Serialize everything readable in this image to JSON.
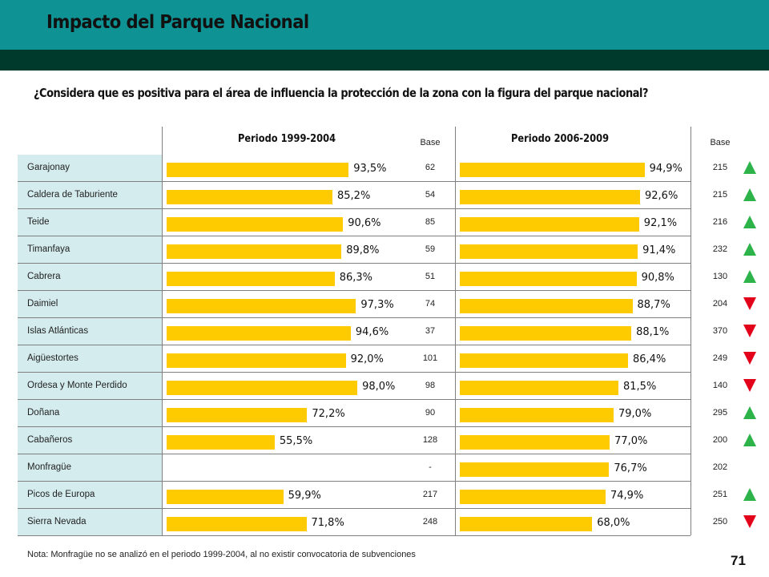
{
  "header": {
    "title": "Impacto del Parque Nacional"
  },
  "question": "¿Considera que es positiva para el área de influencia la protección de la zona con la figura del parque nacional?",
  "columns": {
    "period1": "Periodo 1999-2004",
    "period2": "Periodo 2006-2009",
    "base": "Base"
  },
  "chart_data": {
    "type": "bar",
    "orientation": "horizontal",
    "categories": [
      "Garajonay",
      "Caldera de Taburiente",
      "Teide",
      "Timanfaya",
      "Cabrera",
      "Daimiel",
      "Islas Atlánticas",
      "Aigüestortes",
      "Ordesa y Monte Perdido",
      "Doñana",
      "Cabañeros",
      "Monfragüe",
      "Picos de Europa",
      "Sierra Nevada"
    ],
    "series": [
      {
        "name": "Periodo 1999-2004",
        "values": [
          93.5,
          85.2,
          90.6,
          89.8,
          86.3,
          97.3,
          94.6,
          92.0,
          98.0,
          72.2,
          55.5,
          null,
          59.9,
          71.8
        ],
        "labels": [
          "93,5%",
          "85,2%",
          "90,6%",
          "89,8%",
          "86,3%",
          "97,3%",
          "94,6%",
          "92,0%",
          "98,0%",
          "72,2%",
          "55,5%",
          "",
          "59,9%",
          "71,8%"
        ],
        "base": [
          "62",
          "54",
          "85",
          "59",
          "51",
          "74",
          "37",
          "101",
          "98",
          "90",
          "128",
          "-",
          "217",
          "248"
        ]
      },
      {
        "name": "Periodo 2006-2009",
        "values": [
          94.9,
          92.6,
          92.1,
          91.4,
          90.8,
          88.7,
          88.1,
          86.4,
          81.5,
          79.0,
          77.0,
          76.7,
          74.9,
          68.0
        ],
        "labels": [
          "94,9%",
          "92,6%",
          "92,1%",
          "91,4%",
          "90,8%",
          "88,7%",
          "88,1%",
          "86,4%",
          "81,5%",
          "79,0%",
          "77,0%",
          "76,7%",
          "74,9%",
          "68,0%"
        ],
        "base": [
          "215",
          "215",
          "216",
          "232",
          "130",
          "204",
          "370",
          "249",
          "140",
          "295",
          "200",
          "202",
          "251",
          "250"
        ]
      }
    ],
    "trend": [
      "up",
      "up",
      "up",
      "up",
      "up",
      "down",
      "down",
      "down",
      "down",
      "up",
      "up",
      null,
      "up",
      "down"
    ],
    "colors": {
      "bar": "#fdcb00",
      "up": "#2db34a",
      "down": "#e2001a",
      "label_cell": "#d4ecee"
    }
  },
  "footnote": "Nota: Monfragüe no se analizó en el periodo 1999-2004,  al no existir convocatoria de subvenciones",
  "page_number": "71"
}
